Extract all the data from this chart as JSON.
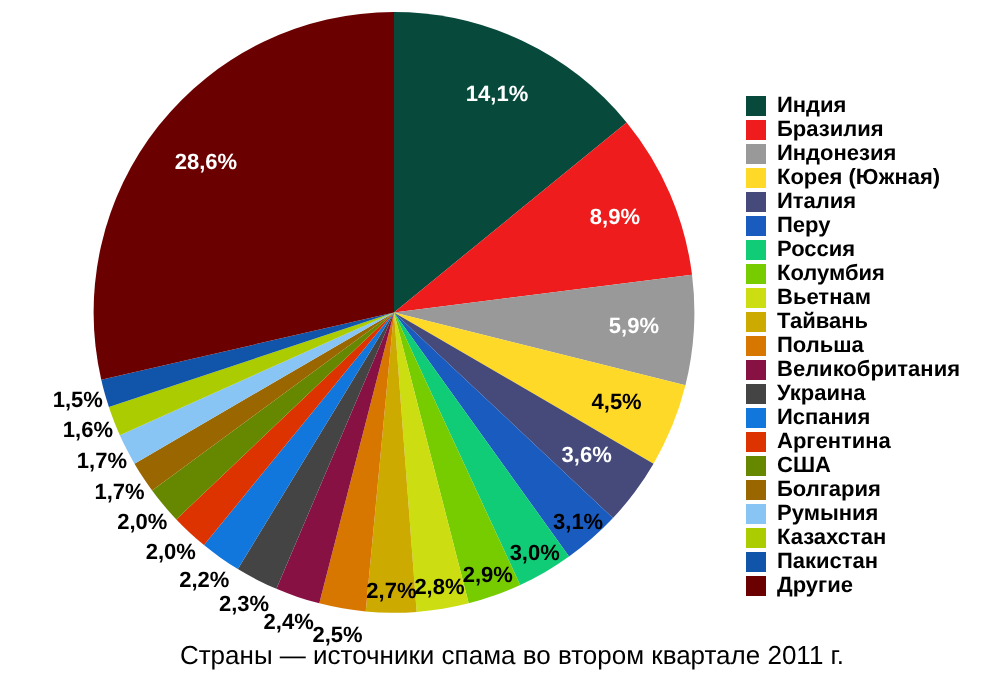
{
  "chart_data": {
    "type": "pie",
    "title": "Страны — источники спама во втором квартале 2011 г.",
    "categories": [
      "Индия",
      "Бразилия",
      "Индонезия",
      "Корея (Южная)",
      "Италия",
      "Перу",
      "Россия",
      "Колумбия",
      "Вьетнам",
      "Тайвань",
      "Польша",
      "Великобритания",
      "Украина",
      "Испания",
      "Аргентина",
      "США",
      "Болгария",
      "Румыния",
      "Казахстан",
      "Пакистан",
      "Другие"
    ],
    "values": [
      14.1,
      8.9,
      5.9,
      4.5,
      3.6,
      3.1,
      3.0,
      2.9,
      2.8,
      2.7,
      2.5,
      2.4,
      2.3,
      2.2,
      2.0,
      2.0,
      1.7,
      1.7,
      1.6,
      1.5,
      28.6
    ],
    "value_labels": [
      "14,1%",
      "8,9%",
      "5,9%",
      "4,5%",
      "3,6%",
      "3,1%",
      "3,0%",
      "2,9%",
      "2,8%",
      "2,7%",
      "2,5%",
      "2,4%",
      "2,3%",
      "2,2%",
      "2,0%",
      "2,0%",
      "1,7%",
      "1,7%",
      "1,6%",
      "1,5%",
      "28,6%"
    ],
    "colors": [
      "#074a3c",
      "#ee1c1c",
      "#999999",
      "#ffd927",
      "#454a7a",
      "#1a5bbf",
      "#11cc77",
      "#77cc00",
      "#ccdd11",
      "#ccaa00",
      "#d77700",
      "#881144",
      "#444444",
      "#1177dd",
      "#dd3300",
      "#668800",
      "#996600",
      "#88c4f4",
      "#aacc00",
      "#1155aa",
      "#6b0000"
    ],
    "legend": "right"
  }
}
